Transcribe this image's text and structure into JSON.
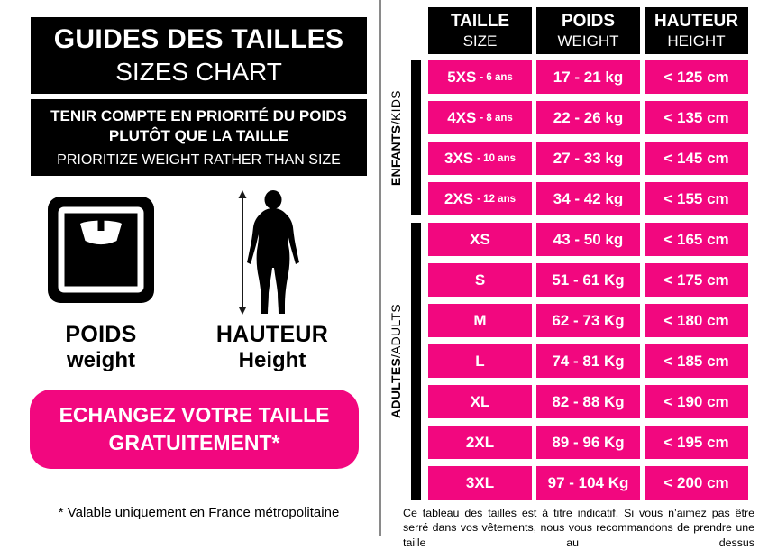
{
  "colors": {
    "pink": "#f2077f",
    "black": "#000000"
  },
  "left_panel": {
    "title_fr": "GUIDES DES TAILLES",
    "title_en": "SIZES CHART",
    "notice_fr_line1": "TENIR COMPTE EN PRIORITÉ DU POIDS",
    "notice_fr_line2": "PLUTÔT QUE LA TAILLE",
    "notice_en": "PRIORITIZE WEIGHT RATHER THAN SIZE",
    "weight_label_fr": "POIDS",
    "weight_label_en": "weight",
    "height_label_fr": "HAUTEUR",
    "height_label_en": "Height",
    "cta_line1": "ECHANGEZ VOTRE TAILLE",
    "cta_line2": "GRATUITEMENT*",
    "footnote": "* Valable uniquement en France métropolitaine"
  },
  "table": {
    "headers": [
      {
        "fr": "TAILLE",
        "en": "SIZE"
      },
      {
        "fr": "POIDS",
        "en": "WEIGHT"
      },
      {
        "fr": "HAUTEUR",
        "en": "HEIGHT"
      }
    ],
    "groups": [
      {
        "label_fr": "ENFANTS",
        "label_sep": " / ",
        "label_en": "KIDS",
        "rows": [
          {
            "size": "5XS",
            "age": "- 6 ans",
            "weight": "17 - 21 kg",
            "height": "< 125 cm"
          },
          {
            "size": "4XS",
            "age": "- 8 ans",
            "weight": "22 - 26 kg",
            "height": "< 135 cm"
          },
          {
            "size": "3XS",
            "age": "- 10 ans",
            "weight": "27 - 33 kg",
            "height": "< 145 cm"
          },
          {
            "size": "2XS",
            "age": "- 12 ans",
            "weight": "34 - 42 kg",
            "height": "< 155 cm"
          }
        ]
      },
      {
        "label_fr": "ADULTES",
        "label_sep": " / ",
        "label_en": "ADULTS",
        "rows": [
          {
            "size": "XS",
            "age": "",
            "weight": "43 - 50 kg",
            "height": "< 165 cm"
          },
          {
            "size": "S",
            "age": "",
            "weight": "51 - 61 Kg",
            "height": "< 175 cm"
          },
          {
            "size": "M",
            "age": "",
            "weight": "62 - 73 Kg",
            "height": "< 180 cm"
          },
          {
            "size": "L",
            "age": "",
            "weight": "74 - 81 Kg",
            "height": "< 185 cm"
          },
          {
            "size": "XL",
            "age": "",
            "weight": "82 - 88 Kg",
            "height": "< 190 cm"
          },
          {
            "size": "2XL",
            "age": "",
            "weight": "89 - 96 Kg",
            "height": "< 195 cm"
          },
          {
            "size": "3XL",
            "age": "",
            "weight": "97 - 104 Kg",
            "height": "< 200 cm"
          }
        ]
      }
    ],
    "caption": "Ce tableau des tailles est à titre indicatif. Si vous n’aimez pas être serré dans vos vêtements, nous vous recommandons de prendre une taille au dessus"
  }
}
